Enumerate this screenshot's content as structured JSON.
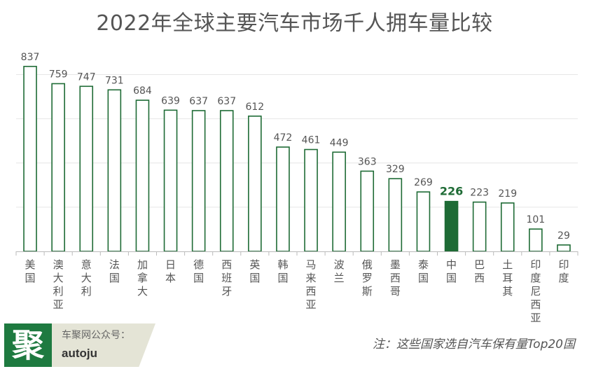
{
  "chart_data": {
    "type": "bar",
    "title": "2022年全球主要汽车市场千人拥车量比较",
    "categories": [
      "美国",
      "澳大利亚",
      "意大利",
      "法国",
      "加拿大",
      "日本",
      "德国",
      "西班牙",
      "英国",
      "韩国",
      "马来西亚",
      "波兰",
      "俄罗斯",
      "墨西哥",
      "泰国",
      "中国",
      "巴西",
      "土耳其",
      "印度尼西亚",
      "印度"
    ],
    "values": [
      837,
      759,
      747,
      731,
      684,
      639,
      637,
      637,
      612,
      472,
      461,
      449,
      363,
      329,
      269,
      226,
      223,
      219,
      101,
      29
    ],
    "highlight": "中国",
    "ylim": [
      0,
      900
    ],
    "grid": true,
    "xlabel": "",
    "ylabel": ""
  },
  "colors": {
    "bar_outline": "#1e6b35",
    "bar_fill": "#ffffff",
    "highlight_fill": "#1e6b35",
    "highlight_label": "#1e6b35",
    "label": "#555555",
    "grid": "#e6e6e6"
  },
  "footer": {
    "logo_glyph": "聚",
    "logo_sub": "车聚网公众号：",
    "logo_handle": "autoju",
    "note": "注：这些国家选自汽车保有量Top20国"
  }
}
